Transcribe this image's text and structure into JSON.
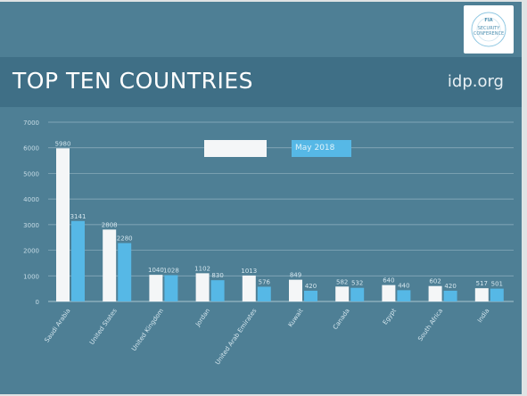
{
  "slide": {
    "title": "TOP TEN COUNTRIES",
    "website": "idp.org",
    "logo_text": [
      "FIA",
      "SECURITY",
      "CONFERENCE"
    ]
  },
  "colors": {
    "background": "#4e7f95",
    "title_band": "#3f6f86",
    "series_1": "#f4f6f7",
    "series_2": "#56b8e6",
    "gridline": "#a9c4d0"
  },
  "chart_data": {
    "type": "bar",
    "title": "",
    "xlabel": "",
    "ylabel": "",
    "ylim": [
      0,
      7000
    ],
    "yticks": [
      1000,
      2000,
      3000,
      4000,
      5000,
      6000,
      7000
    ],
    "grid": true,
    "legend_position": "top-center",
    "categories": [
      "Saudi Arabia",
      "United States",
      "United Kingdom",
      "Jordan",
      "United Arab Emirates",
      "Kuwait",
      "Canada",
      "Egypt",
      "South Africa",
      "India"
    ],
    "series": [
      {
        "name": "",
        "color": "#f4f6f7",
        "values": [
          5980,
          2808,
          1040,
          1102,
          1013,
          849,
          582,
          640,
          602,
          517
        ]
      },
      {
        "name": "May 2018",
        "color": "#56b8e6",
        "values": [
          3141,
          2280,
          1028,
          830,
          576,
          420,
          532,
          440,
          420,
          501
        ]
      }
    ]
  }
}
